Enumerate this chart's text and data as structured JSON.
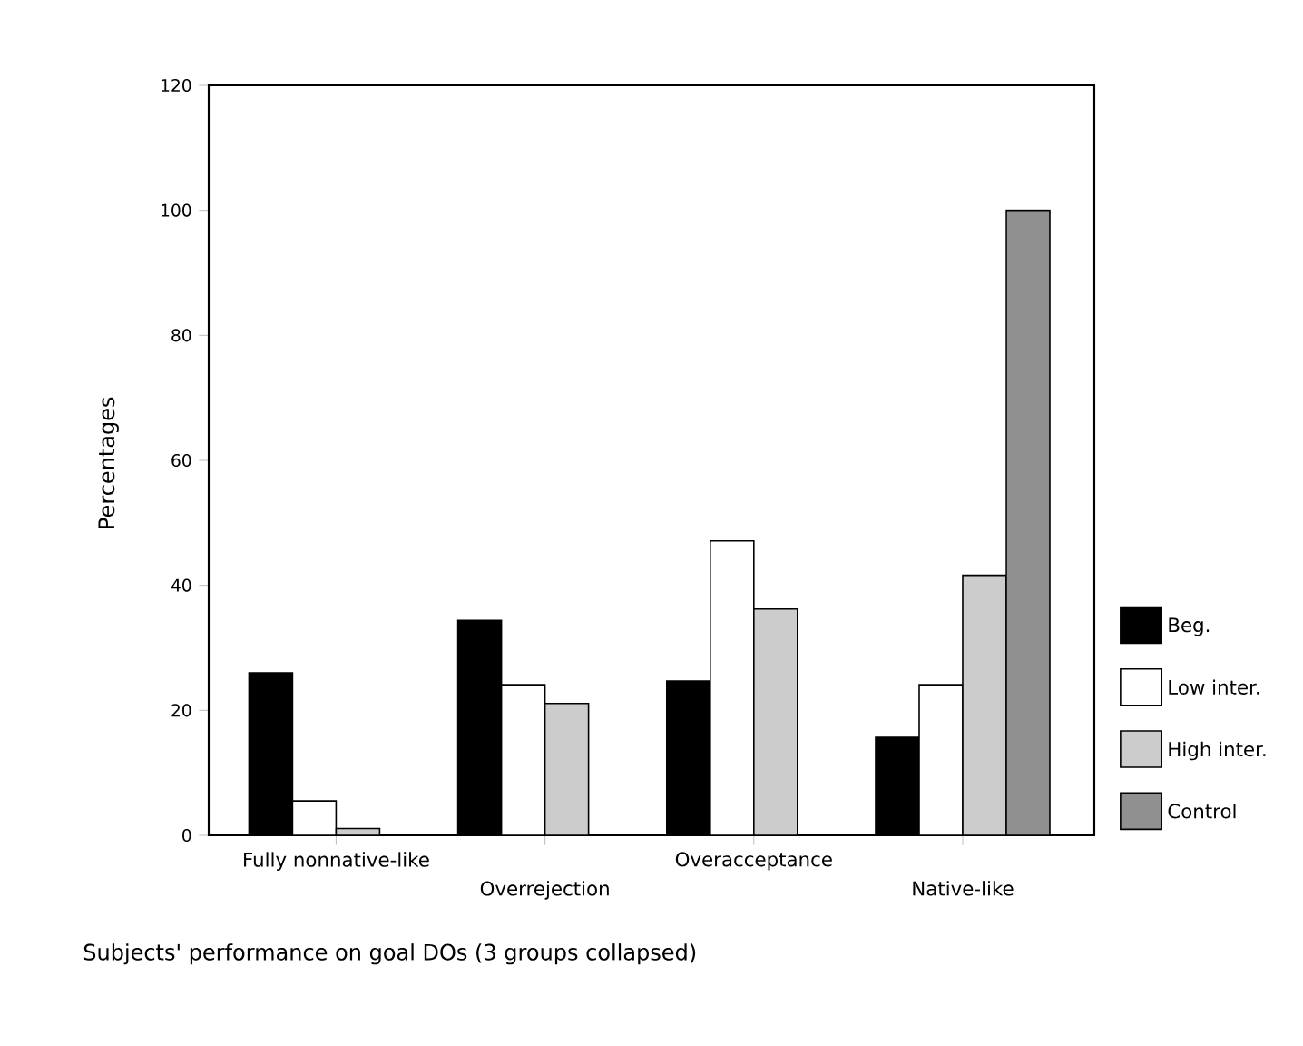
{
  "chart_data": {
    "type": "bar",
    "xlabel": "Subjects' performance on goal DOs (3 groups collapsed)",
    "ylabel": "Percentages",
    "categories": [
      "Fully nonnative-like",
      "Overrejection",
      "Overacceptance",
      "Native-like"
    ],
    "series": [
      {
        "name": "Beg.",
        "color": "#000000",
        "values": [
          26,
          34.4,
          24.7,
          15.7
        ]
      },
      {
        "name": "Low inter.",
        "color": "#ffffff",
        "values": [
          5.5,
          24.1,
          47.1,
          24.1
        ]
      },
      {
        "name": "High inter.",
        "color": "#cccccc",
        "values": [
          1.1,
          21.1,
          36.2,
          41.6
        ]
      },
      {
        "name": "Control",
        "color": "#909090",
        "values": [
          null,
          null,
          null,
          100
        ]
      }
    ],
    "ylim": [
      0,
      120
    ],
    "yticks": [
      0,
      20,
      40,
      60,
      80,
      100,
      120
    ],
    "legend": "right",
    "grid": false
  }
}
